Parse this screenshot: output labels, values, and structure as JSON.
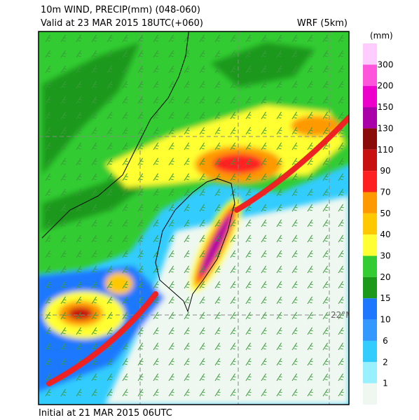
{
  "header": {
    "title": "10m WIND, PRECIP(mm) (048-060)",
    "valid": "Valid at 23 MAR 2015 18UTC(+060)",
    "model": "WRF (5km)"
  },
  "map": {
    "lat_label": "22°N"
  },
  "colorbar": {
    "unit": "(mm)",
    "labels": [
      "300",
      "200",
      "150",
      "130",
      "110",
      "90",
      "70",
      "50",
      "40",
      "30",
      "20",
      "15",
      "10",
      "6",
      "2",
      "1"
    ],
    "colors": [
      "#ffccff",
      "#ff55dd",
      "#ee00cc",
      "#aa00aa",
      "#8b0a0a",
      "#c81010",
      "#ff2020",
      "#ff9900",
      "#ffc800",
      "#ffff33",
      "#33cc33",
      "#1a991a",
      "#1e78ff",
      "#3399ff",
      "#33ccff",
      "#99f0ff",
      "#eef8f0"
    ]
  },
  "footer": {
    "initial": "Initial at 21 MAR 2015 06UTC"
  }
}
